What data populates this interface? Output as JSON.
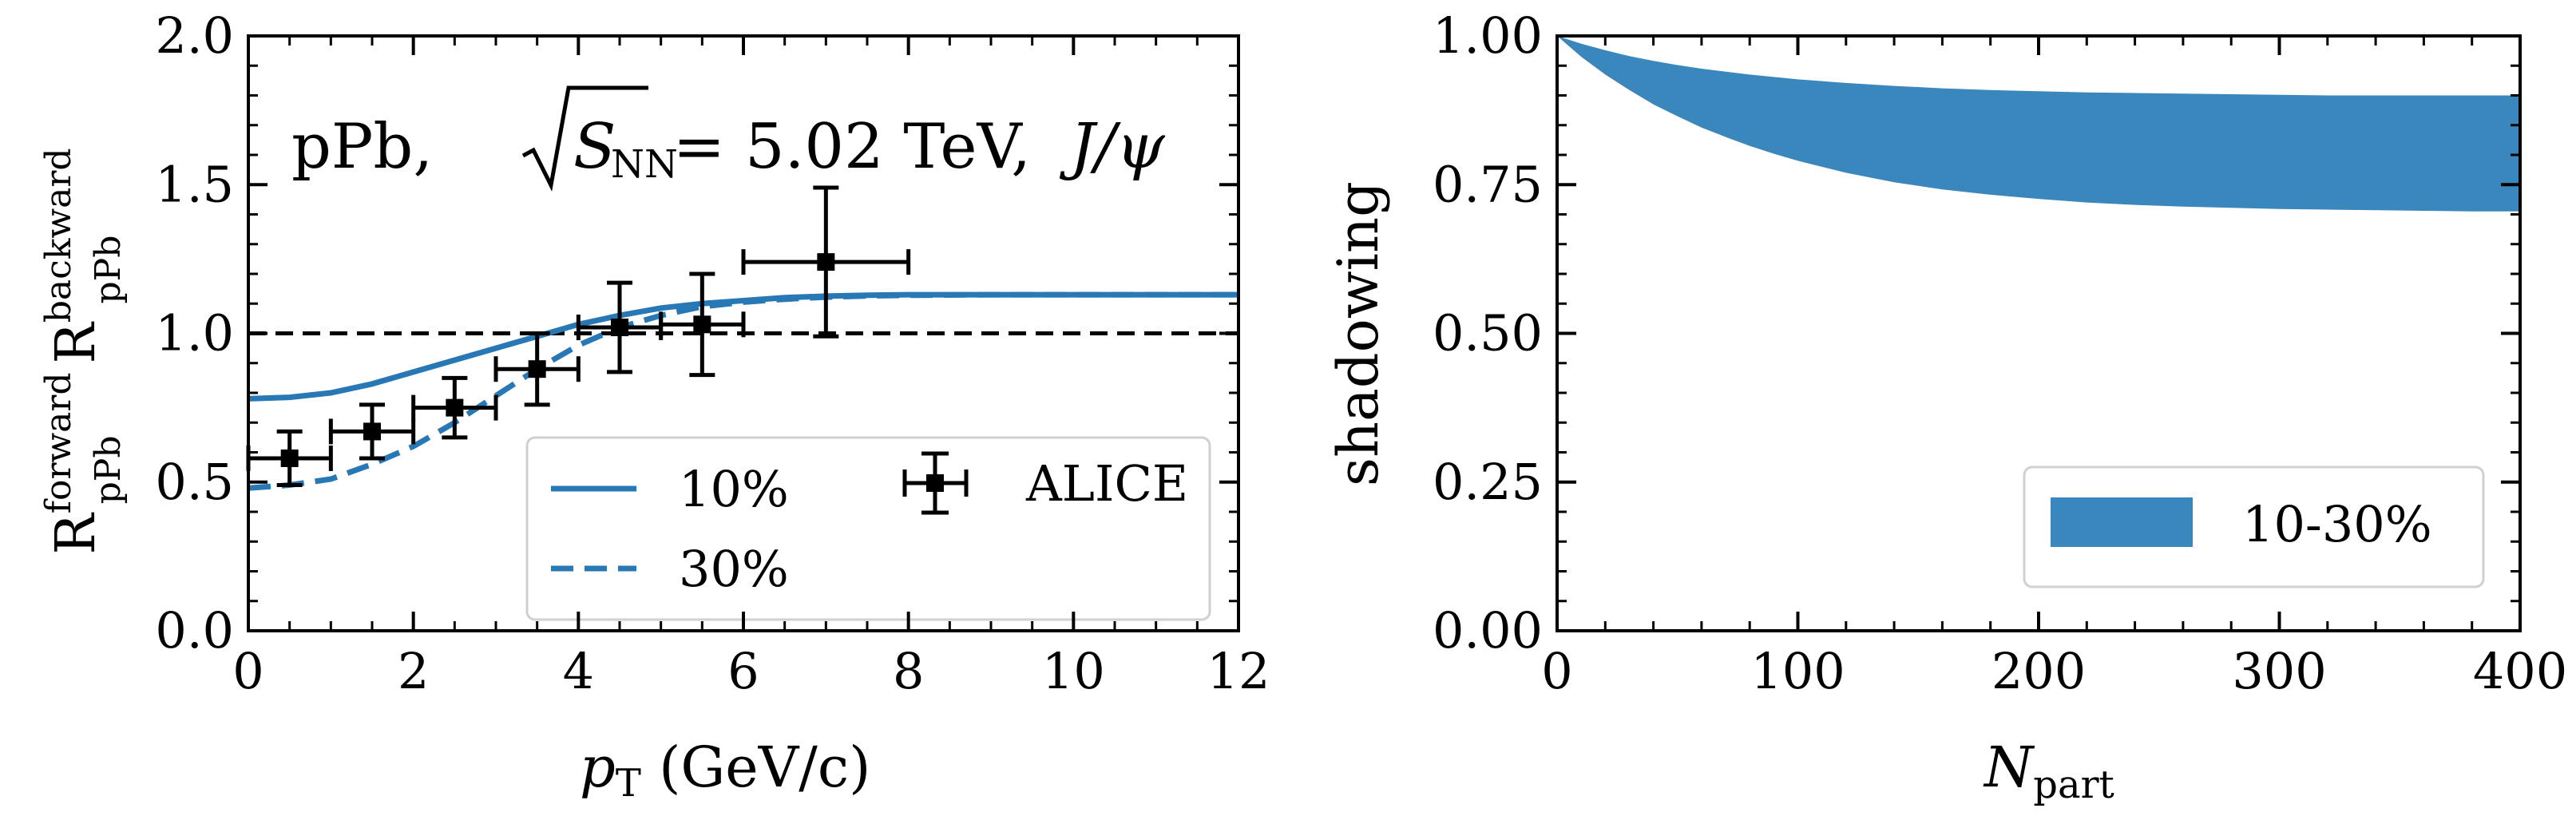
{
  "chart_data": [
    {
      "type": "line",
      "annotation": {
        "prefix": "pPb, ",
        "radicand": "S",
        "radicand_sub": "NN",
        "value": " = 5.02 TeV, ",
        "particle": "J/ψ"
      },
      "xlabel": {
        "main": "p",
        "sub": "T",
        "unit": " (GeV/c)"
      },
      "ylabel": {
        "r1": "R",
        "r1_sup": "forward",
        "r1_sub": "pPb",
        "r2": "R",
        "r2_sup": "backward",
        "r2_sub": "pPb"
      },
      "xlim": [
        0,
        12
      ],
      "ylim": [
        0,
        2
      ],
      "xticks": [
        "0",
        "2",
        "4",
        "6",
        "8",
        "10",
        "12"
      ],
      "yticks": [
        "0.0",
        "0.5",
        "1.0",
        "1.5",
        "2.0"
      ],
      "reference_line": 1.0,
      "series": [
        {
          "name": "10%",
          "style": "solid",
          "color": "#2878b5",
          "x": [
            0,
            0.5,
            1,
            1.5,
            2,
            2.5,
            3,
            3.5,
            4,
            4.5,
            5,
            5.5,
            6,
            6.5,
            7,
            7.5,
            8,
            9,
            10,
            11,
            12
          ],
          "y": [
            0.78,
            0.785,
            0.8,
            0.83,
            0.87,
            0.91,
            0.95,
            0.99,
            1.03,
            1.06,
            1.085,
            1.1,
            1.11,
            1.12,
            1.125,
            1.128,
            1.13,
            1.13,
            1.13,
            1.13,
            1.13
          ]
        },
        {
          "name": "30%",
          "style": "dashed",
          "color": "#2878b5",
          "x": [
            0,
            0.5,
            1,
            1.5,
            2,
            2.5,
            3,
            3.5,
            4,
            4.5,
            5,
            5.5,
            6,
            6.5,
            7,
            7.5,
            8,
            9,
            10,
            11,
            12
          ],
          "y": [
            0.48,
            0.49,
            0.51,
            0.56,
            0.62,
            0.7,
            0.79,
            0.88,
            0.96,
            1.02,
            1.06,
            1.09,
            1.105,
            1.115,
            1.122,
            1.126,
            1.128,
            1.13,
            1.13,
            1.13,
            1.13
          ]
        },
        {
          "name": "ALICE",
          "style": "points",
          "color": "#000000",
          "points": [
            {
              "x": 0.5,
              "y": 0.58,
              "xerr": 0.5,
              "yerr": 0.09
            },
            {
              "x": 1.5,
              "y": 0.67,
              "xerr": 0.5,
              "yerr": 0.09
            },
            {
              "x": 2.5,
              "y": 0.75,
              "xerr": 0.5,
              "yerr": 0.1
            },
            {
              "x": 3.5,
              "y": 0.88,
              "xerr": 0.5,
              "yerr": 0.12
            },
            {
              "x": 4.5,
              "y": 1.02,
              "xerr": 0.5,
              "yerr": 0.15
            },
            {
              "x": 5.5,
              "y": 1.03,
              "xerr": 0.5,
              "yerr": 0.17
            },
            {
              "x": 7.0,
              "y": 1.24,
              "xerr": 1.0,
              "yerr": 0.25
            }
          ]
        }
      ],
      "legend": {
        "location": "lower-right",
        "entries": [
          "10%",
          "ALICE",
          "30%"
        ]
      }
    },
    {
      "type": "area",
      "xlabel": {
        "main": "N",
        "sub": "part"
      },
      "ylabel": "shadowing",
      "xlim": [
        0,
        400
      ],
      "ylim": [
        0,
        1
      ],
      "xticks": [
        "0",
        "100",
        "200",
        "300",
        "400"
      ],
      "yticks": [
        "0.00",
        "0.25",
        "0.50",
        "0.75",
        "1.00"
      ],
      "series": [
        {
          "name": "10-30%",
          "color": "#3a87be",
          "x": [
            0,
            10,
            20,
            30,
            40,
            50,
            60,
            70,
            80,
            90,
            100,
            120,
            140,
            160,
            180,
            200,
            220,
            240,
            260,
            280,
            300,
            320,
            340,
            360,
            380,
            400
          ],
          "upper": [
            1.0,
            0.987,
            0.976,
            0.966,
            0.958,
            0.951,
            0.945,
            0.94,
            0.935,
            0.931,
            0.927,
            0.921,
            0.916,
            0.912,
            0.909,
            0.907,
            0.905,
            0.904,
            0.903,
            0.902,
            0.901,
            0.9,
            0.9,
            0.9,
            0.9,
            0.9
          ],
          "lower": [
            1.0,
            0.965,
            0.935,
            0.909,
            0.885,
            0.865,
            0.846,
            0.83,
            0.815,
            0.802,
            0.79,
            0.77,
            0.754,
            0.742,
            0.733,
            0.726,
            0.72,
            0.716,
            0.713,
            0.711,
            0.709,
            0.708,
            0.707,
            0.706,
            0.705,
            0.705
          ]
        }
      ],
      "legend": {
        "location": "lower-right",
        "entries": [
          "10-30%"
        ]
      }
    }
  ]
}
